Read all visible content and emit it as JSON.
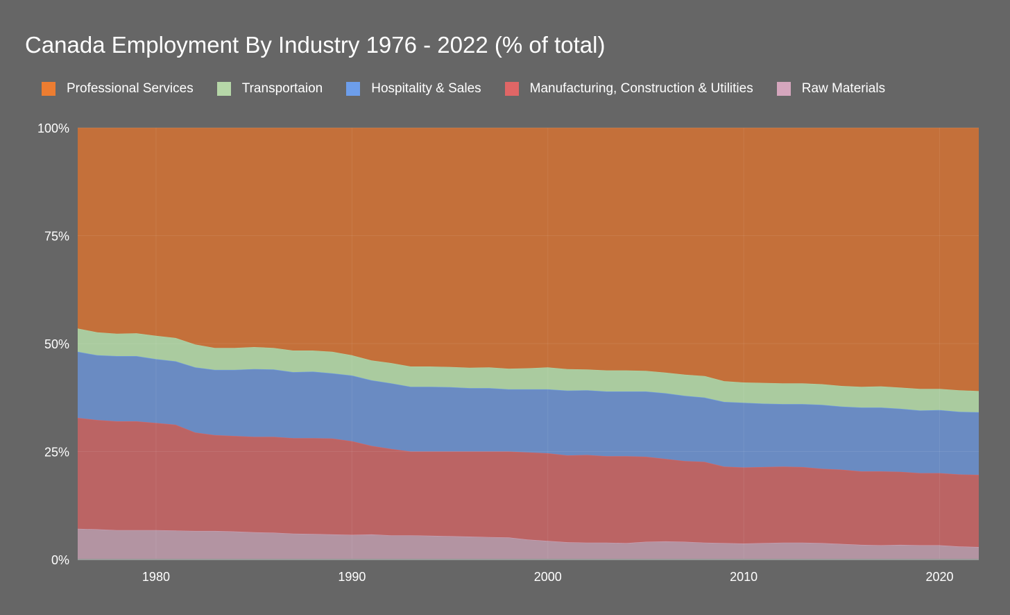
{
  "chart_data": {
    "type": "area",
    "stacked": true,
    "title": "Canada Employment By Industry 1976 - 2022 (% of total)",
    "xlabel": "",
    "ylabel": "",
    "ylim": [
      0,
      100
    ],
    "xlim": [
      1976,
      2022
    ],
    "yticks": [
      "0%",
      "25%",
      "50%",
      "75%",
      "100%"
    ],
    "ytick_values": [
      0,
      25,
      50,
      75,
      100
    ],
    "xticks": [
      "1980",
      "1990",
      "2000",
      "2010",
      "2020"
    ],
    "xtick_values": [
      1980,
      1990,
      2000,
      2010,
      2020
    ],
    "grid": true,
    "legend_position": "top",
    "x": [
      1976,
      1977,
      1978,
      1979,
      1980,
      1981,
      1982,
      1983,
      1984,
      1985,
      1986,
      1987,
      1988,
      1989,
      1990,
      1991,
      1992,
      1993,
      1994,
      1995,
      1996,
      1997,
      1998,
      1999,
      2000,
      2001,
      2002,
      2003,
      2004,
      2005,
      2006,
      2007,
      2008,
      2009,
      2010,
      2011,
      2012,
      2013,
      2014,
      2015,
      2016,
      2017,
      2018,
      2019,
      2020,
      2021,
      2022
    ],
    "series": [
      {
        "name": "Raw Materials",
        "fill": "#b394a2",
        "legend_color": "#d5a6bd",
        "values": [
          7.1,
          7.0,
          6.8,
          6.8,
          6.8,
          6.7,
          6.6,
          6.6,
          6.5,
          6.3,
          6.2,
          6.0,
          5.9,
          5.8,
          5.7,
          5.8,
          5.6,
          5.6,
          5.5,
          5.4,
          5.3,
          5.2,
          5.1,
          4.6,
          4.3,
          4.0,
          3.9,
          3.9,
          3.8,
          4.1,
          4.2,
          4.1,
          3.9,
          3.8,
          3.7,
          3.8,
          3.9,
          3.9,
          3.8,
          3.6,
          3.4,
          3.3,
          3.4,
          3.3,
          3.3,
          3.0,
          2.9
        ]
      },
      {
        "name": "Manufacturing, Construction & Utilities",
        "fill": "#bb6464",
        "legend_color": "#e06666",
        "values": [
          25.7,
          25.3,
          25.2,
          25.2,
          24.8,
          24.5,
          22.8,
          22.2,
          22.1,
          22.1,
          22.2,
          22.1,
          22.2,
          22.2,
          21.7,
          20.5,
          20.0,
          19.4,
          19.5,
          19.6,
          19.7,
          19.8,
          19.9,
          20.2,
          20.3,
          20.1,
          20.3,
          20.0,
          20.1,
          19.7,
          19.1,
          18.7,
          18.7,
          17.7,
          17.6,
          17.6,
          17.6,
          17.5,
          17.2,
          17.2,
          17.0,
          17.1,
          16.9,
          16.7,
          16.7,
          16.7,
          16.7
        ]
      },
      {
        "name": "Hospitality & Sales",
        "fill": "#6a8bc2",
        "legend_color": "#6d9eeb",
        "values": [
          15.3,
          15.0,
          15.1,
          15.1,
          14.8,
          14.7,
          15.1,
          15.1,
          15.3,
          15.7,
          15.6,
          15.3,
          15.4,
          15.1,
          15.2,
          15.2,
          15.2,
          15.0,
          15.0,
          14.9,
          14.7,
          14.7,
          14.4,
          14.6,
          14.8,
          15.0,
          15.0,
          15.0,
          15.0,
          15.1,
          15.2,
          15.1,
          14.9,
          15.0,
          15.0,
          14.7,
          14.5,
          14.6,
          14.8,
          14.6,
          14.8,
          14.8,
          14.6,
          14.5,
          14.6,
          14.5,
          14.5
        ]
      },
      {
        "name": "Transportaion",
        "fill": "#aacb9f",
        "legend_color": "#b6d7a8",
        "values": [
          5.4,
          5.3,
          5.2,
          5.3,
          5.4,
          5.4,
          5.3,
          5.1,
          5.1,
          5.1,
          5.0,
          5.0,
          4.9,
          5.0,
          4.7,
          4.6,
          4.7,
          4.7,
          4.7,
          4.7,
          4.7,
          4.8,
          4.8,
          4.9,
          5.1,
          5.0,
          4.8,
          4.9,
          4.9,
          4.8,
          4.8,
          4.9,
          5.0,
          4.8,
          4.7,
          4.8,
          4.8,
          4.8,
          4.8,
          4.8,
          4.8,
          4.9,
          4.9,
          5.0,
          4.9,
          5.0,
          4.9
        ]
      },
      {
        "name": "Professional Services",
        "fill": "#c4703a",
        "legend_color": "#ed7d31",
        "values": [
          46.5,
          47.4,
          47.7,
          47.6,
          48.2,
          48.7,
          50.2,
          51.0,
          51.0,
          50.8,
          51.0,
          51.6,
          51.6,
          51.9,
          52.7,
          53.9,
          54.5,
          55.3,
          55.3,
          55.4,
          55.6,
          55.5,
          55.8,
          55.7,
          55.5,
          55.9,
          56.0,
          56.2,
          56.2,
          56.3,
          56.7,
          57.2,
          57.5,
          58.7,
          59.0,
          59.1,
          59.2,
          59.2,
          59.4,
          59.8,
          60.0,
          59.9,
          60.2,
          60.5,
          60.5,
          60.8,
          61.0
        ]
      }
    ],
    "legend_order": [
      "Professional Services",
      "Transportaion",
      "Hospitality & Sales",
      "Manufacturing, Construction & Utilities",
      "Raw Materials"
    ]
  }
}
